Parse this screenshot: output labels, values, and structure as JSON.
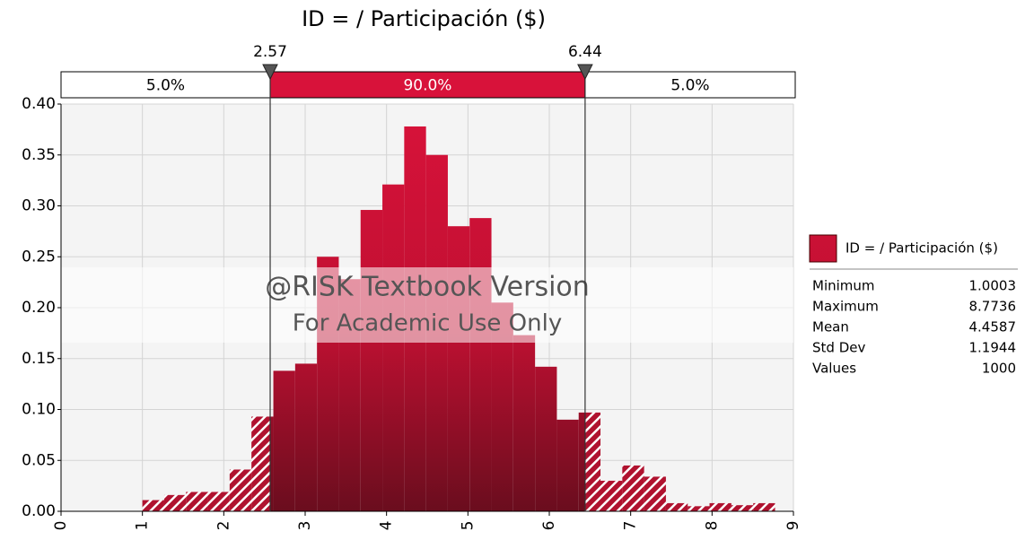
{
  "chart_data": {
    "type": "histogram",
    "title": "ID = / Participación ($)",
    "name": "ID = / Participación ($)",
    "color": "#d8123a",
    "bins": [
      1.0,
      1.268,
      1.536,
      1.804,
      2.072,
      2.34,
      2.609,
      2.877,
      3.145,
      3.413,
      3.681,
      3.949,
      4.217,
      4.485,
      4.753,
      5.021,
      5.289,
      5.557,
      5.825,
      6.093,
      6.361,
      6.629,
      6.897,
      7.165,
      7.433,
      7.701,
      7.969,
      8.237,
      8.506,
      8.774
    ],
    "values": [
      0.011,
      0.016,
      0.019,
      0.019,
      0.041,
      0.093,
      0.138,
      0.145,
      0.25,
      0.228,
      0.296,
      0.321,
      0.378,
      0.35,
      0.28,
      0.288,
      0.205,
      0.173,
      0.142,
      0.09,
      0.097,
      0.03,
      0.045,
      0.034,
      0.008,
      0.005,
      0.008,
      0.006,
      0.008
    ],
    "xlim": [
      0,
      9
    ],
    "xticks": [
      0,
      1,
      2,
      3,
      4,
      5,
      6,
      7,
      8,
      9
    ],
    "ylim": [
      0,
      0.4
    ],
    "yticks": [
      {
        "value": 0,
        "label": "0.00"
      },
      {
        "value": 0.05,
        "label": "0.05"
      },
      {
        "value": 0.1,
        "label": "0.10"
      },
      {
        "value": 0.15,
        "label": "0.15"
      },
      {
        "value": 0.2,
        "label": "0.20"
      },
      {
        "value": 0.25,
        "label": "0.25"
      },
      {
        "value": 0.3,
        "label": "0.30"
      },
      {
        "value": 0.35,
        "label": "0.35"
      },
      {
        "value": 0.4,
        "label": "0.40"
      }
    ],
    "grid": true,
    "delimiters": [
      2.57,
      6.44
    ],
    "region_values": [
      5,
      90,
      5
    ],
    "region_labels": [
      "5.0%",
      "90.0%",
      "5.0%"
    ],
    "watermark": [
      "@RISK Textbook Version",
      "For Academic Use Only"
    ],
    "stats": {
      "names": [
        "Minimum",
        "Maximum",
        "Mean",
        "Std Dev",
        "Values"
      ],
      "values": [
        1.0003,
        8.7736,
        4.4587,
        1.1944,
        1000
      ]
    }
  }
}
